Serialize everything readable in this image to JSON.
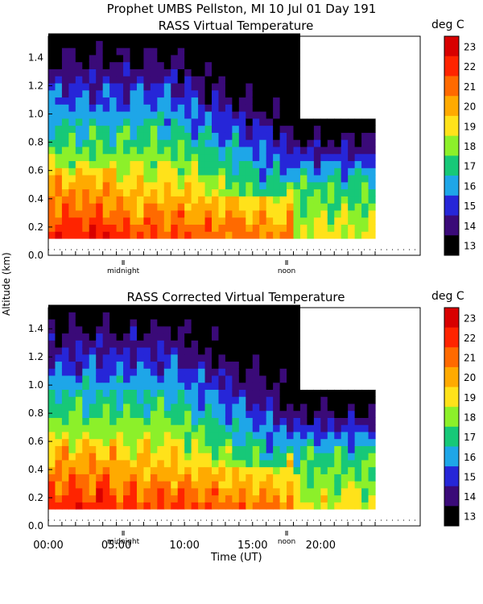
{
  "header": {
    "title": "Prophet  UMBS Pellston, MI  10 Jul 01 Day 191"
  },
  "chart_data": [
    {
      "type": "heatmap",
      "title": "RASS Virtual Temperature",
      "ylabel": "Altitude (km)",
      "ylim": [
        0,
        1.55
      ],
      "xlim": [
        0,
        24
      ],
      "yticks": [
        0.0,
        0.2,
        0.4,
        0.6,
        0.8,
        1.0,
        1.2,
        1.4
      ],
      "ytick_labels": [
        "0.0",
        "0.2",
        "0.4",
        "0.6",
        "0.8",
        "1.0",
        "1.2",
        "1.4"
      ],
      "annotations": [
        {
          "label": "midnight",
          "x": 5.5
        },
        {
          "label": "noon",
          "x": 17.5
        }
      ],
      "colorbar": {
        "label": "deg C",
        "levels": [
          13,
          14,
          15,
          16,
          17,
          18,
          19,
          20,
          21,
          22,
          23
        ],
        "colors": [
          "#000000",
          "#3a0a78",
          "#2626d8",
          "#1ea6e8",
          "#17c878",
          "#8cf02a",
          "#ffe21a",
          "#ffaa00",
          "#ff6a00",
          "#ff2400",
          "#d80000"
        ]
      },
      "colorbar_labels": [
        "23",
        "22",
        "21",
        "20",
        "19",
        "18",
        "17",
        "16",
        "15",
        "14",
        "13"
      ]
    },
    {
      "type": "heatmap",
      "title": "RASS Corrected Virtual Temperature",
      "xlabel": "Time (UT)",
      "ylim": [
        0,
        1.55
      ],
      "xlim": [
        0,
        24
      ],
      "xticks": [
        "00:00",
        "05:00",
        "10:00",
        "15:00",
        "20:00"
      ],
      "yticks": [
        0.0,
        0.2,
        0.4,
        0.6,
        0.8,
        1.0,
        1.2,
        1.4
      ],
      "ytick_labels": [
        "0.0",
        "0.2",
        "0.4",
        "0.6",
        "0.8",
        "1.0",
        "1.2",
        "1.4"
      ],
      "annotations": [
        {
          "label": "midnight",
          "x": 5.5
        },
        {
          "label": "noon",
          "x": 17.5
        }
      ],
      "colorbar": {
        "label": "deg C",
        "levels": [
          13,
          14,
          15,
          16,
          17,
          18,
          19,
          20,
          21,
          22,
          23
        ],
        "colors": [
          "#000000",
          "#3a0a78",
          "#2626d8",
          "#1ea6e8",
          "#17c878",
          "#8cf02a",
          "#ffe21a",
          "#ffaa00",
          "#ff6a00",
          "#ff2400",
          "#d80000"
        ]
      },
      "colorbar_labels": [
        "23",
        "22",
        "21",
        "20",
        "19",
        "18",
        "17",
        "16",
        "15",
        "14",
        "13"
      ]
    }
  ]
}
